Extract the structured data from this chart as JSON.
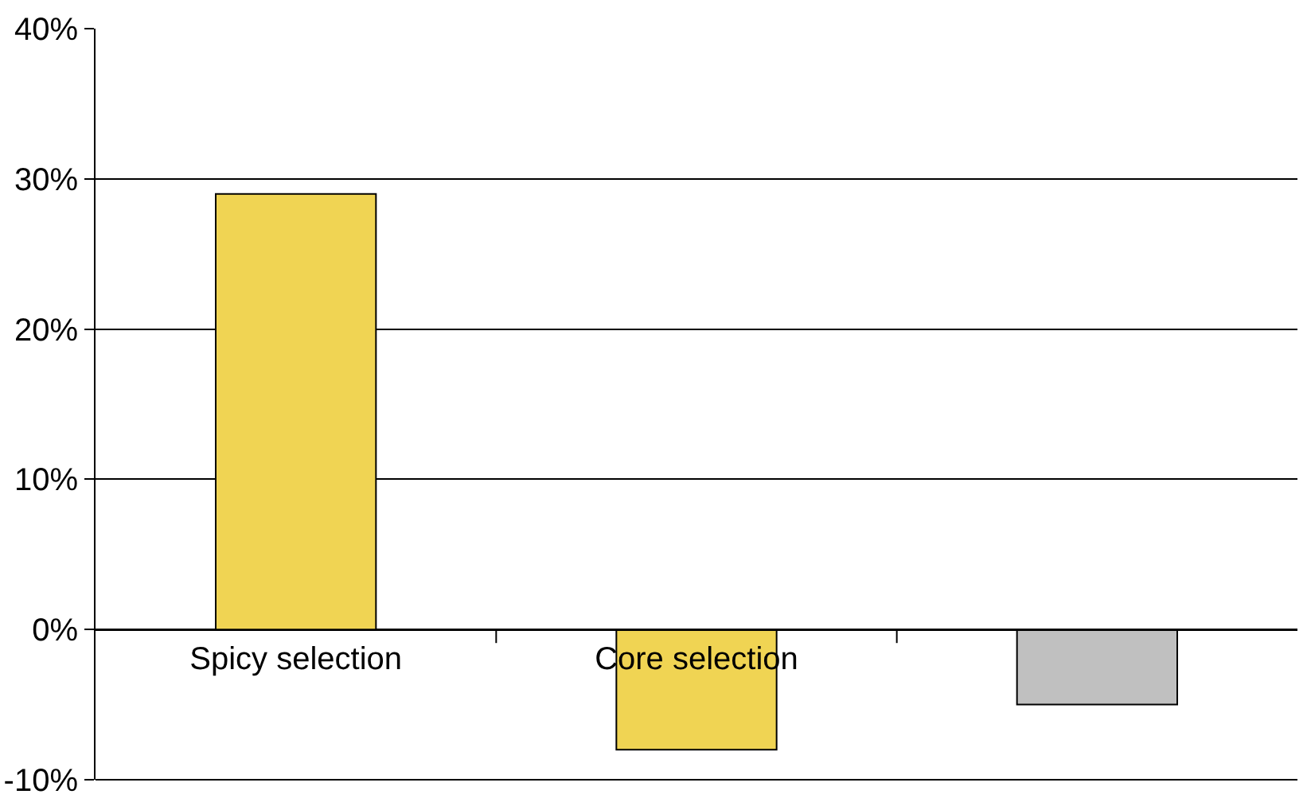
{
  "chart_data": {
    "type": "bar",
    "categories": [
      "Spicy selection",
      "Core selection",
      null
    ],
    "values": [
      29,
      -8,
      -5
    ],
    "colors": [
      "#f0d453",
      "#f0d453",
      "#c0c0c0"
    ],
    "ylim": [
      -10,
      40
    ],
    "yticks": [
      {
        "value": -10,
        "label": "-10%"
      },
      {
        "value": 0,
        "label": "0%"
      },
      {
        "value": 10,
        "label": "10%"
      },
      {
        "value": 20,
        "label": "20%"
      },
      {
        "value": 30,
        "label": "30%"
      },
      {
        "value": 40,
        "label": "40%"
      }
    ],
    "grid": "y"
  }
}
